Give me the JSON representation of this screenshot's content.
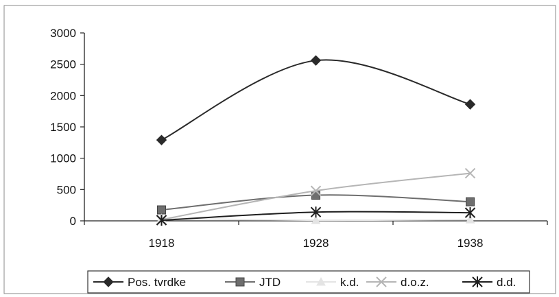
{
  "chart_data": {
    "type": "line",
    "title": "",
    "xlabel": "",
    "ylabel": "",
    "categories": [
      "1918",
      "1928",
      "1938"
    ],
    "ylim": [
      0,
      3000
    ],
    "yticks": [
      "0",
      "500",
      "1000",
      "1500",
      "2000",
      "2500",
      "3000"
    ],
    "grid": false,
    "smooth": true,
    "legend_position": "bottom",
    "series": [
      {
        "name": "Pos. tvrdke",
        "values": [
          1290,
          2560,
          1860
        ],
        "color": "#2a2a2a",
        "marker": "diamond"
      },
      {
        "name": "JTD",
        "values": [
          175,
          410,
          305
        ],
        "color": "#6e6e6e",
        "marker": "square"
      },
      {
        "name": "k.d.",
        "values": [
          40,
          10,
          20
        ],
        "color": "#e4e4e4",
        "marker": "triangle"
      },
      {
        "name": "d.o.z.",
        "values": [
          20,
          480,
          760
        ],
        "color": "#b5b5b5",
        "marker": "x"
      },
      {
        "name": "d.d.",
        "values": [
          10,
          140,
          130
        ],
        "color": "#1e1e1e",
        "marker": "star"
      }
    ]
  }
}
